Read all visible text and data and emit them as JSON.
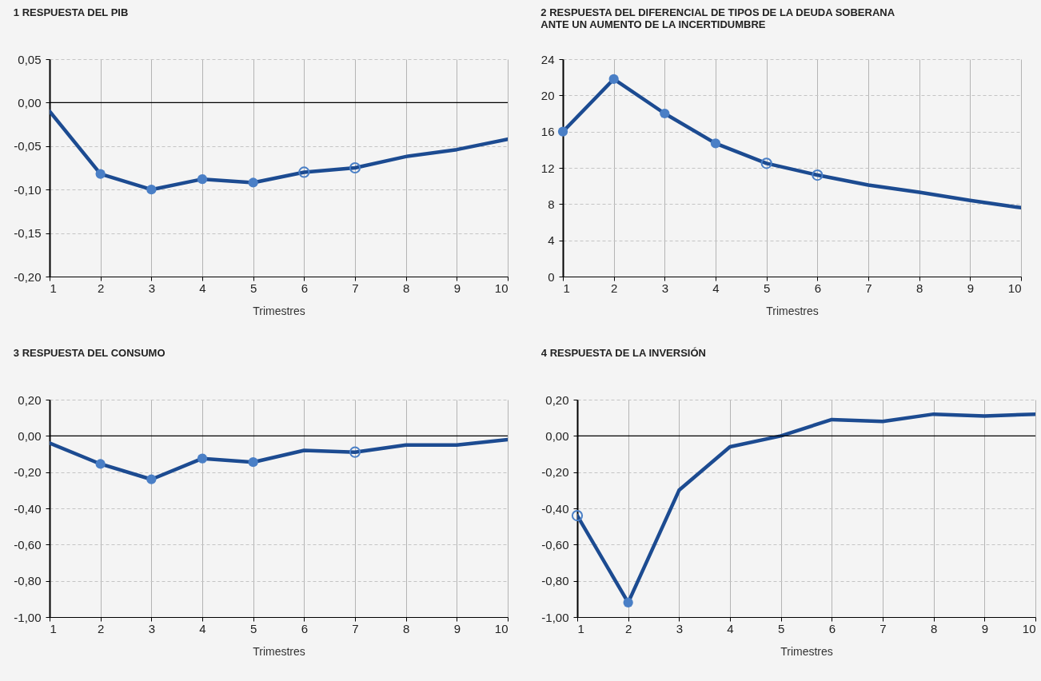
{
  "chart_data": [
    {
      "type": "line",
      "title": "1  RESPUESTA DEL PIB",
      "xlabel": "Trimestres",
      "x": [
        1,
        2,
        3,
        4,
        5,
        6,
        7,
        8,
        9,
        10
      ],
      "xlim": [
        1,
        10
      ],
      "xticks": [
        1,
        2,
        3,
        4,
        5,
        6,
        7,
        8,
        9,
        10
      ],
      "ylim": [
        -0.2,
        0.05
      ],
      "yticks": [
        {
          "value": -0.2,
          "label": "-0,20"
        },
        {
          "value": -0.15,
          "label": "-0,15"
        },
        {
          "value": -0.1,
          "label": "-0,10"
        },
        {
          "value": -0.05,
          "label": "-0,05"
        },
        {
          "value": 0,
          "label": "0,00"
        },
        {
          "value": 0.05,
          "label": "0,05"
        }
      ],
      "grid": true,
      "ref_lines": [
        {
          "axis": "y",
          "value": 0,
          "color": "#000000"
        }
      ],
      "series": [
        {
          "type": "line",
          "color": "#1c4b91",
          "values": [
            -0.01,
            -0.082,
            -0.1,
            -0.088,
            -0.092,
            -0.08,
            -0.075,
            -0.062,
            -0.054,
            -0.042
          ]
        },
        {
          "type": "scatter",
          "marker": "circle",
          "color": "#4a7fc6",
          "values": [
            null,
            -0.082,
            -0.1,
            -0.088,
            -0.092,
            null,
            null,
            null,
            null,
            null
          ]
        },
        {
          "type": "scatter",
          "marker": "circle",
          "color": "#4a7fc6",
          "values": [
            null,
            null,
            null,
            null,
            null,
            -0.08,
            -0.075,
            null,
            null,
            null
          ]
        }
      ]
    },
    {
      "type": "line",
      "title": "2  RESPUESTA DEL DIFERENCIAL DE TIPOS DE LA DEUDA SOBERANA\n    ANTE UN AUMENTO DE LA INCERTIDUMBRE",
      "xlabel": "Trimestres",
      "x": [
        1,
        2,
        3,
        4,
        5,
        6,
        7,
        8,
        9,
        10
      ],
      "xlim": [
        1,
        10
      ],
      "xticks": [
        1,
        2,
        3,
        4,
        5,
        6,
        7,
        8,
        9,
        10
      ],
      "ylim": [
        0,
        24
      ],
      "yticks": [
        0,
        4,
        8,
        12,
        16,
        20,
        24
      ],
      "grid": true,
      "series": [
        {
          "type": "line",
          "color": "#1c4b91",
          "values": [
            16.0,
            21.8,
            18.0,
            14.7,
            12.5,
            11.2,
            10.1,
            9.3,
            8.4,
            7.6
          ]
        },
        {
          "type": "scatter",
          "marker": "circle",
          "color": "#4a7fc6",
          "values": [
            16.0,
            21.8,
            18.0,
            14.7,
            null,
            null,
            null,
            null,
            null,
            null
          ]
        },
        {
          "type": "scatter",
          "marker": "circle",
          "color": "#4a7fc6",
          "values": [
            null,
            null,
            null,
            null,
            12.5,
            11.2,
            null,
            null,
            null,
            null
          ]
        }
      ]
    },
    {
      "type": "line",
      "title": "3  RESPUESTA DEL CONSUMO",
      "xlabel": "Trimestres",
      "x": [
        1,
        2,
        3,
        4,
        5,
        6,
        7,
        8,
        9,
        10
      ],
      "xlim": [
        1,
        10
      ],
      "xticks": [
        1,
        2,
        3,
        4,
        5,
        6,
        7,
        8,
        9,
        10
      ],
      "ylim": [
        -1,
        0.2
      ],
      "yticks": [
        {
          "value": -1,
          "label": "-1,00"
        },
        {
          "value": -0.8,
          "label": "-0,80"
        },
        {
          "value": -0.6,
          "label": "-0,60"
        },
        {
          "value": -0.4,
          "label": "-0,40"
        },
        {
          "value": -0.2,
          "label": "-0,20"
        },
        {
          "value": 0,
          "label": "0,00"
        },
        {
          "value": 0.2,
          "label": "0,20"
        }
      ],
      "grid": true,
      "ref_lines": [
        {
          "axis": "y",
          "value": 0,
          "color": "#000000"
        }
      ],
      "series": [
        {
          "type": "line",
          "color": "#1c4b91",
          "values": [
            -0.04,
            -0.155,
            -0.24,
            -0.125,
            -0.145,
            -0.08,
            -0.09,
            -0.05,
            -0.05,
            -0.02
          ]
        },
        {
          "type": "scatter",
          "marker": "circle",
          "color": "#4a7fc6",
          "values": [
            null,
            -0.155,
            -0.24,
            -0.125,
            -0.145,
            null,
            null,
            null,
            null,
            null
          ]
        },
        {
          "type": "scatter",
          "marker": "circle",
          "color": "#4a7fc6",
          "values": [
            null,
            null,
            null,
            null,
            null,
            null,
            -0.09,
            null,
            null,
            null
          ]
        }
      ]
    },
    {
      "type": "line",
      "title": "4  RESPUESTA DE LA INVERSIÓN",
      "xlabel": "Trimestres",
      "x": [
        1,
        2,
        3,
        4,
        5,
        6,
        7,
        8,
        9,
        10
      ],
      "xlim": [
        1,
        10
      ],
      "xticks": [
        1,
        2,
        3,
        4,
        5,
        6,
        7,
        8,
        9,
        10
      ],
      "ylim": [
        -1,
        0.2
      ],
      "yticks": [
        {
          "value": -1,
          "label": "-1,00"
        },
        {
          "value": -0.8,
          "label": "-0,80"
        },
        {
          "value": -0.6,
          "label": "-0,60"
        },
        {
          "value": -0.4,
          "label": "-0,40"
        },
        {
          "value": -0.2,
          "label": "-0,20"
        },
        {
          "value": 0,
          "label": "0,00"
        },
        {
          "value": 0.2,
          "label": "0,20"
        }
      ],
      "grid": true,
      "ref_lines": [
        {
          "axis": "y",
          "value": 0,
          "color": "#000000"
        }
      ],
      "series": [
        {
          "type": "line",
          "color": "#1c4b91",
          "values": [
            -0.44,
            -0.92,
            -0.3,
            -0.06,
            0.0,
            0.09,
            0.08,
            0.12,
            0.11,
            0.12
          ]
        },
        {
          "type": "scatter",
          "marker": "circle",
          "color": "#4a7fc6",
          "values": [
            null,
            -0.92,
            null,
            null,
            null,
            null,
            null,
            null,
            null,
            null
          ]
        },
        {
          "type": "scatter",
          "marker": "circle",
          "color": "#4a7fc6",
          "values": [
            -0.44,
            null,
            null,
            null,
            null,
            null,
            null,
            null,
            null,
            null
          ]
        }
      ]
    }
  ]
}
